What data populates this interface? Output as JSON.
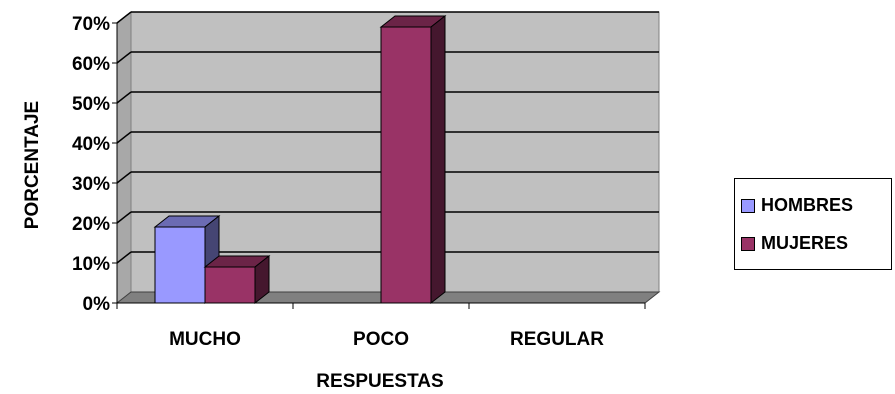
{
  "chart_data": {
    "type": "bar",
    "categories": [
      "MUCHO",
      "POCO",
      "REGULAR"
    ],
    "series": [
      {
        "name": "HOMBRES",
        "values": [
          19,
          0,
          0
        ],
        "color": "#9999ff"
      },
      {
        "name": "MUJERES",
        "values": [
          9,
          69,
          0
        ],
        "color": "#993366"
      }
    ],
    "title": "",
    "xlabel": "RESPUESTAS",
    "ylabel": "PORCENTAJE",
    "ylim": [
      0,
      70
    ],
    "yticks": [
      "0%",
      "10%",
      "20%",
      "30%",
      "40%",
      "50%",
      "60%",
      "70%"
    ],
    "grid": true,
    "legend": "right",
    "style": "3d-column",
    "wall_color": "#c0c0c0"
  }
}
